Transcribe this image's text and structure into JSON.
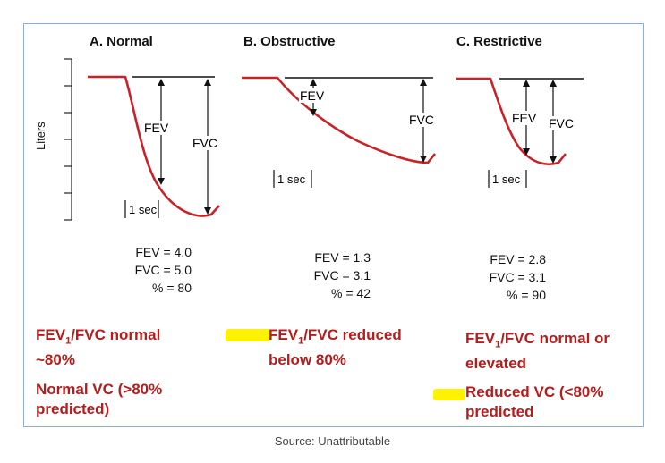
{
  "y_axis_label": "Liters",
  "sec_label": "1 sec",
  "fev_label": "FEV",
  "fvc_label": "FVC",
  "panels": [
    {
      "title": "A. Normal",
      "fev_line": "FEV = 4.0",
      "fvc_line": "FVC = 5.0",
      "pct_line": "% = 80",
      "note1": "FEV1/FVC normal",
      "note1b": "~80%",
      "note2": "Normal VC (>80%",
      "note2b": "predicted)"
    },
    {
      "title": "B. Obstructive",
      "fev_line": "FEV = 1.3",
      "fvc_line": "FVC = 3.1",
      "pct_line": "% = 42",
      "note1": "FEV1/FVC reduced",
      "note1b": "below 80%"
    },
    {
      "title": "C. Restrictive",
      "fev_line": "FEV = 2.8",
      "fvc_line": "FVC = 3.1",
      "pct_line": "% = 90",
      "note1": "FEV1/FVC normal or",
      "note1b": "elevated",
      "note2": "Reduced VC (<80%",
      "note2b": "predicted"
    }
  ],
  "source": "Source: Unattributable",
  "colors": {
    "curve": "#cc2027",
    "note": "#b71c1c",
    "highlight": "#fff200",
    "border": "#8faadc"
  }
}
